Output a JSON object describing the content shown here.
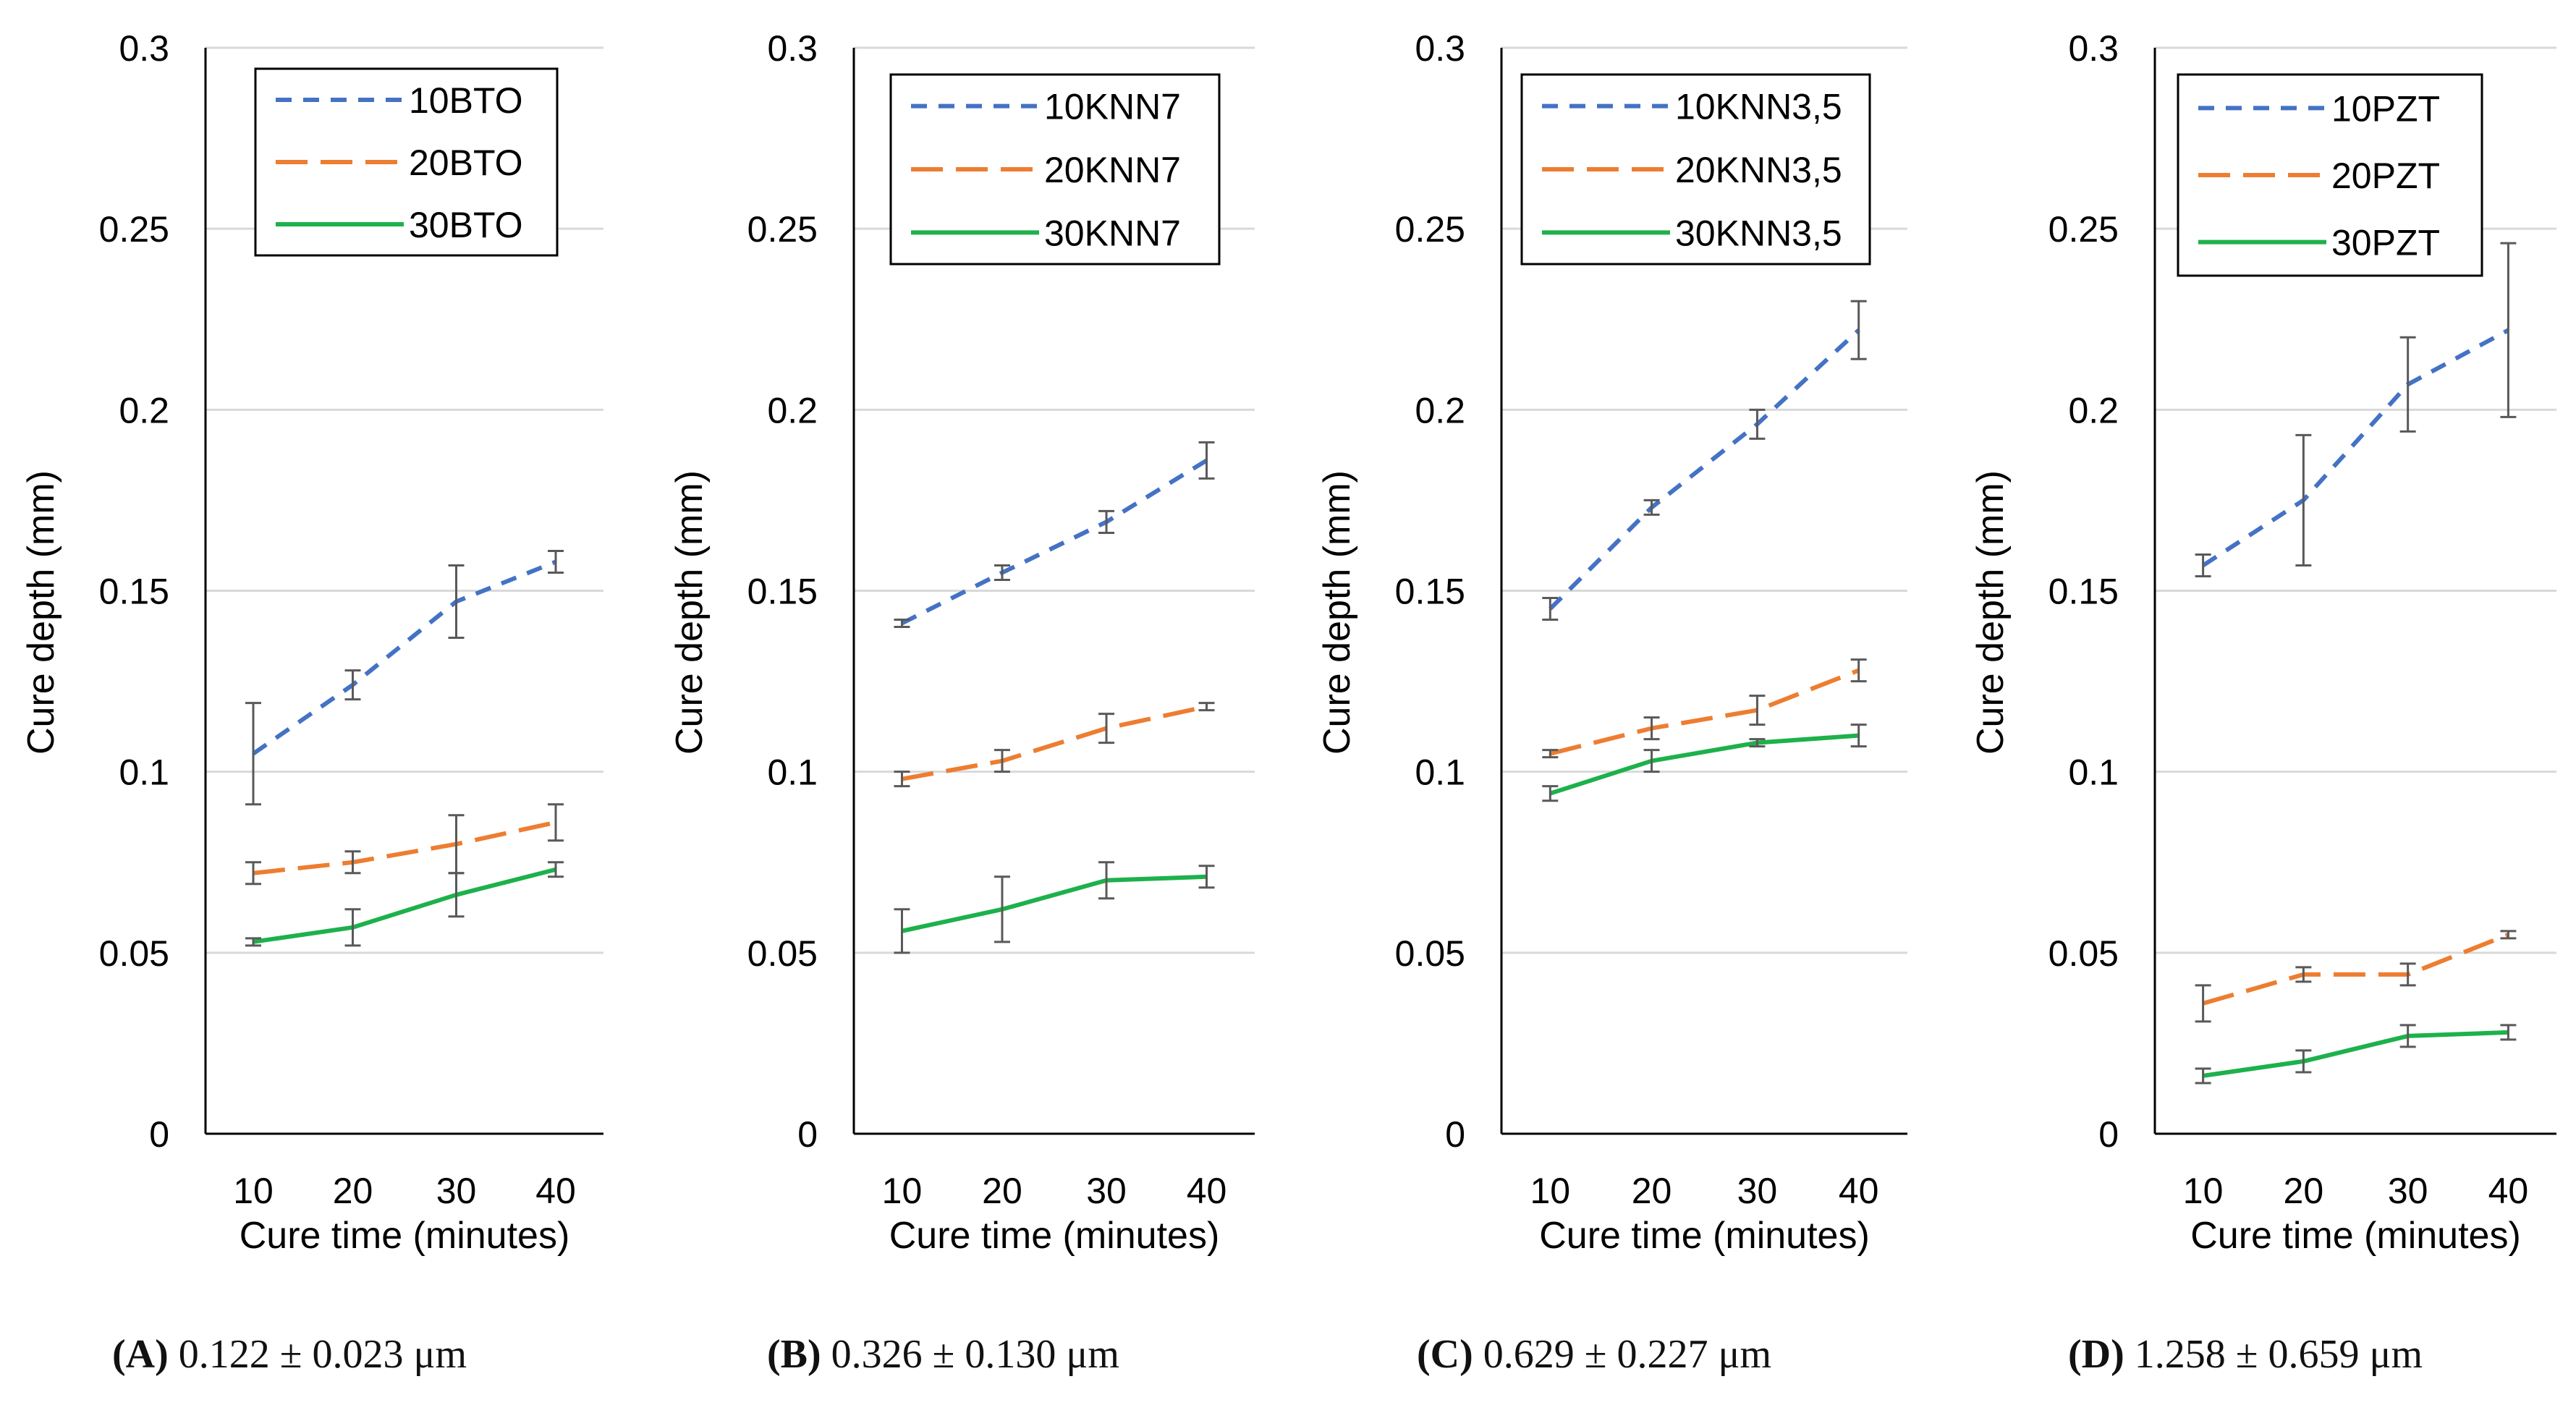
{
  "chart_data": [
    {
      "type": "line",
      "panel": "A",
      "xlabel": "Cure time (minutes)",
      "ylabel": "Cure depth (mm)",
      "x": [
        10,
        20,
        30,
        40
      ],
      "ylim": [
        0,
        0.3
      ],
      "yticks": [
        "0",
        "0.05",
        "0.1",
        "0.15",
        "0.2",
        "0.25",
        "0.3"
      ],
      "grid": true,
      "legend": "top-left",
      "series": [
        {
          "name": "10BTO",
          "values": [
            0.105,
            0.124,
            0.147,
            0.158
          ],
          "errors": [
            0.014,
            0.004,
            0.01,
            0.003
          ]
        },
        {
          "name": "20BTO",
          "values": [
            0.072,
            0.075,
            0.08,
            0.086
          ],
          "errors": [
            0.003,
            0.003,
            0.008,
            0.005
          ]
        },
        {
          "name": "30BTO",
          "values": [
            0.053,
            0.057,
            0.066,
            0.073
          ],
          "errors": [
            0.001,
            0.005,
            0.006,
            0.002
          ]
        }
      ]
    },
    {
      "type": "line",
      "panel": "B",
      "xlabel": "Cure time (minutes)",
      "ylabel": "Cure depth (mm)",
      "x": [
        10,
        20,
        30,
        40
      ],
      "ylim": [
        0,
        0.3
      ],
      "yticks": [
        "0",
        "0.05",
        "0.1",
        "0.15",
        "0.2",
        "0.25",
        "0.3"
      ],
      "grid": true,
      "legend": "top-right",
      "series": [
        {
          "name": "10KNN7",
          "values": [
            0.141,
            0.155,
            0.169,
            0.186
          ],
          "errors": [
            0.001,
            0.002,
            0.003,
            0.005
          ]
        },
        {
          "name": "20KNN7",
          "values": [
            0.098,
            0.103,
            0.112,
            0.118
          ],
          "errors": [
            0.002,
            0.003,
            0.004,
            0.001
          ]
        },
        {
          "name": "30KNN7",
          "values": [
            0.056,
            0.062,
            0.07,
            0.071
          ],
          "errors": [
            0.006,
            0.009,
            0.005,
            0.003
          ]
        }
      ]
    },
    {
      "type": "line",
      "panel": "C",
      "xlabel": "Cure time (minutes)",
      "ylabel": "Cure depth (mm)",
      "x": [
        10,
        20,
        30,
        40
      ],
      "ylim": [
        0,
        0.3
      ],
      "yticks": [
        "0",
        "0.05",
        "0.1",
        "0.15",
        "0.2",
        "0.25",
        "0.3"
      ],
      "grid": true,
      "legend": "top",
      "series": [
        {
          "name": "10KNN3,5",
          "values": [
            0.145,
            0.173,
            0.196,
            0.222
          ],
          "errors": [
            0.003,
            0.002,
            0.004,
            0.008
          ]
        },
        {
          "name": "20KNN3,5",
          "values": [
            0.105,
            0.112,
            0.117,
            0.128
          ],
          "errors": [
            0.001,
            0.003,
            0.004,
            0.003
          ]
        },
        {
          "name": "30KNN3,5",
          "values": [
            0.094,
            0.103,
            0.108,
            0.11
          ],
          "errors": [
            0.002,
            0.003,
            0.001,
            0.003
          ]
        }
      ]
    },
    {
      "type": "line",
      "panel": "D",
      "xlabel": "Cure time (minutes)",
      "ylabel": "Cure depth (mm)",
      "x": [
        10,
        20,
        30,
        40
      ],
      "ylim": [
        0,
        0.3
      ],
      "yticks": [
        "0",
        "0.05",
        "0.1",
        "0.15",
        "0.2",
        "0.25",
        "0.3"
      ],
      "grid": true,
      "legend": "top-left",
      "series": [
        {
          "name": "10PZT",
          "values": [
            0.157,
            0.175,
            0.207,
            0.222
          ],
          "errors": [
            0.003,
            0.018,
            0.013,
            0.024
          ]
        },
        {
          "name": "20PZT",
          "values": [
            0.036,
            0.044,
            0.044,
            0.055
          ],
          "errors": [
            0.005,
            0.002,
            0.003,
            0.001
          ]
        },
        {
          "name": "30PZT",
          "values": [
            0.016,
            0.02,
            0.027,
            0.028
          ],
          "errors": [
            0.002,
            0.003,
            0.003,
            0.002
          ]
        }
      ]
    }
  ],
  "style": {
    "series_colors": [
      "#4472C4",
      "#ED7D31",
      "#1DB14B"
    ],
    "series_dashes": [
      "22,16",
      "44,18",
      ""
    ],
    "grid_color": "#d9d9d9",
    "axis_color": "#000000",
    "error_color": "#595959"
  },
  "captions": [
    {
      "label": "(A)",
      "text": " 0.122 ± 0.023 μm"
    },
    {
      "label": "(B)",
      "text": " 0.326 ± 0.130 μm"
    },
    {
      "label": "(C)",
      "text": " 0.629 ± 0.227 μm"
    },
    {
      "label": "(D)",
      "text": " 1.258 ± 0.659 μm"
    }
  ]
}
